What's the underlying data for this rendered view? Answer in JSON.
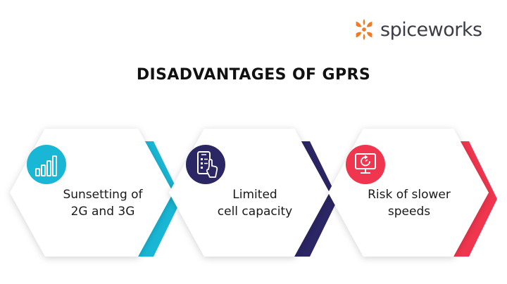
{
  "brand": {
    "name": "spiceworks",
    "logo_color": "#f07b22",
    "text_color": "#3c3c46"
  },
  "title": "DISADVANTAGES OF GPRS",
  "items": [
    {
      "line1": "Sunsetting of",
      "line2": "2G and 3G",
      "icon": "signal-bars-icon",
      "color": "#19b7d5"
    },
    {
      "line1": "Limited",
      "line2": "cell capacity",
      "icon": "phone-touch-icon",
      "color": "#2b2664"
    },
    {
      "line1": "Risk of slower",
      "line2": "speeds",
      "icon": "monitor-refresh-icon",
      "color": "#f0364e"
    }
  ]
}
